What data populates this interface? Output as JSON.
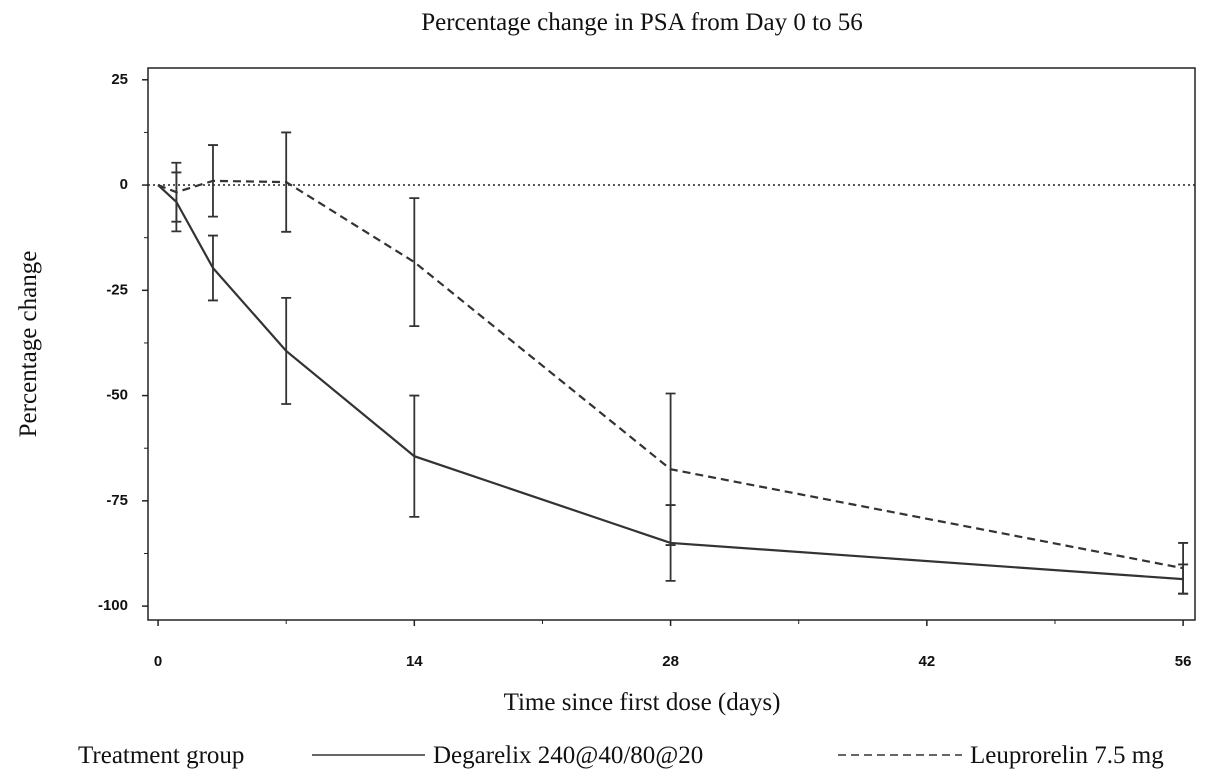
{
  "chart_data": {
    "type": "line",
    "title": "Percentage change in PSA from Day 0 to 56",
    "x_label": "Time since first dose (days)",
    "y_label": "Percentage change",
    "legend_title": "Treatment group",
    "x": [
      0,
      1,
      3,
      7,
      14,
      28,
      56
    ],
    "series": [
      {
        "name": "Degarelix 240@40/80@20",
        "color": "#333333",
        "dash": "solid",
        "values": [
          0,
          -4,
          -19.7,
          -39.4,
          -64.4,
          -85,
          -93.6
        ],
        "errors": [
          0,
          7,
          7.7,
          12.6,
          14.4,
          9,
          3.5
        ]
      },
      {
        "name": "Leuprorelin 7.5 mg",
        "color": "#333333",
        "dash": "dashed",
        "values": [
          0,
          -1.7,
          1,
          0.7,
          -18.3,
          -67.5,
          -91
        ],
        "errors": [
          0,
          7,
          8.5,
          11.8,
          15.2,
          18,
          6
        ]
      }
    ],
    "hline": 0,
    "xlim": [
      -0.55,
      56.65
    ],
    "xticks": [
      0,
      14,
      28,
      42,
      56
    ],
    "ylim": [
      -103.3,
      27.8
    ],
    "yticks": [
      25,
      0,
      -25,
      -50,
      -75,
      -100
    ]
  }
}
